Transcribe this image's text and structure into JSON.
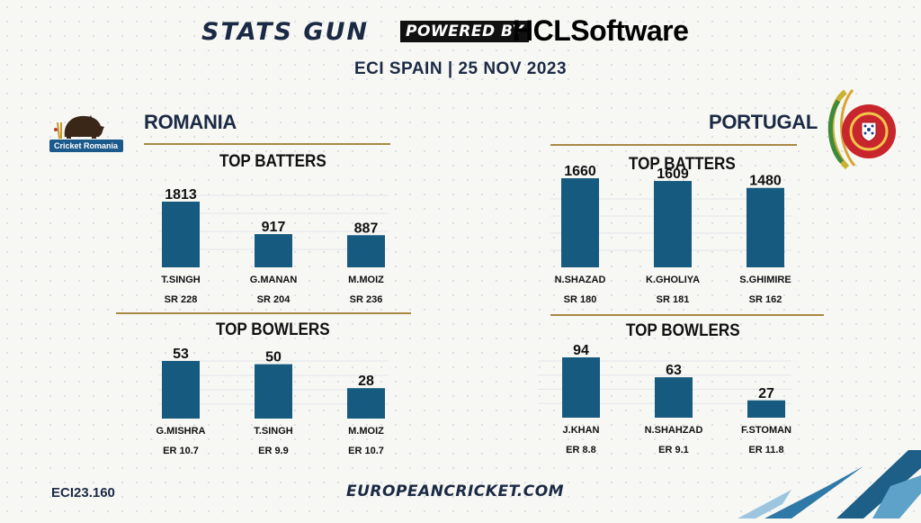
{
  "header": {
    "brand_left": "STATS GUN",
    "brand_powered": "POWERED BY",
    "brand_right": "HCLSoftware",
    "subtitle": "ECI SPAIN | 25 NOV 2023"
  },
  "teams": {
    "left": {
      "name": "ROMANIA",
      "logo_text": "Cricket Romania"
    },
    "right": {
      "name": "PORTUGAL"
    }
  },
  "footer": {
    "code": "ECI23.160",
    "url": "EUROPEANCRICKET.COM"
  },
  "colors": {
    "bar": "#175a7f",
    "navy": "#1b2a44",
    "gold": "#a88a45",
    "accent_stripe": "#1d5f86"
  },
  "chart_data": [
    {
      "type": "bar",
      "title": "TOP BATTERS",
      "team": "ROMANIA",
      "categories": [
        "T.SINGH",
        "G.MANAN",
        "M.MOIZ"
      ],
      "values": [
        1813,
        917,
        887
      ],
      "sublabels": [
        "SR 228",
        "SR 204",
        "SR 236"
      ],
      "ylim": [
        0,
        2000
      ]
    },
    {
      "type": "bar",
      "title": "TOP BATTERS",
      "team": "PORTUGAL",
      "categories": [
        "N.SHAZAD",
        "K.GHOLIYA",
        "S.GHIMIRE"
      ],
      "values": [
        1660,
        1609,
        1480
      ],
      "sublabels": [
        "SR 180",
        "SR 181",
        "SR 162"
      ],
      "ylim": [
        0,
        2000
      ]
    },
    {
      "type": "bar",
      "title": "TOP BOWLERS",
      "team": "ROMANIA",
      "categories": [
        "G.MISHRA",
        "T.SINGH",
        "M.MOIZ"
      ],
      "values": [
        53,
        50,
        28
      ],
      "sublabels": [
        "ER 10.7",
        "ER 9.9",
        "ER 10.7"
      ],
      "ylim": [
        0,
        60
      ]
    },
    {
      "type": "bar",
      "title": "TOP BOWLERS",
      "team": "PORTUGAL",
      "categories": [
        "J.KHAN",
        "N.SHAHZAD",
        "F.STOMAN"
      ],
      "values": [
        94,
        63,
        27
      ],
      "sublabels": [
        "ER 8.8",
        "ER 9.1",
        "ER 11.8"
      ],
      "ylim": [
        0,
        100
      ]
    }
  ]
}
